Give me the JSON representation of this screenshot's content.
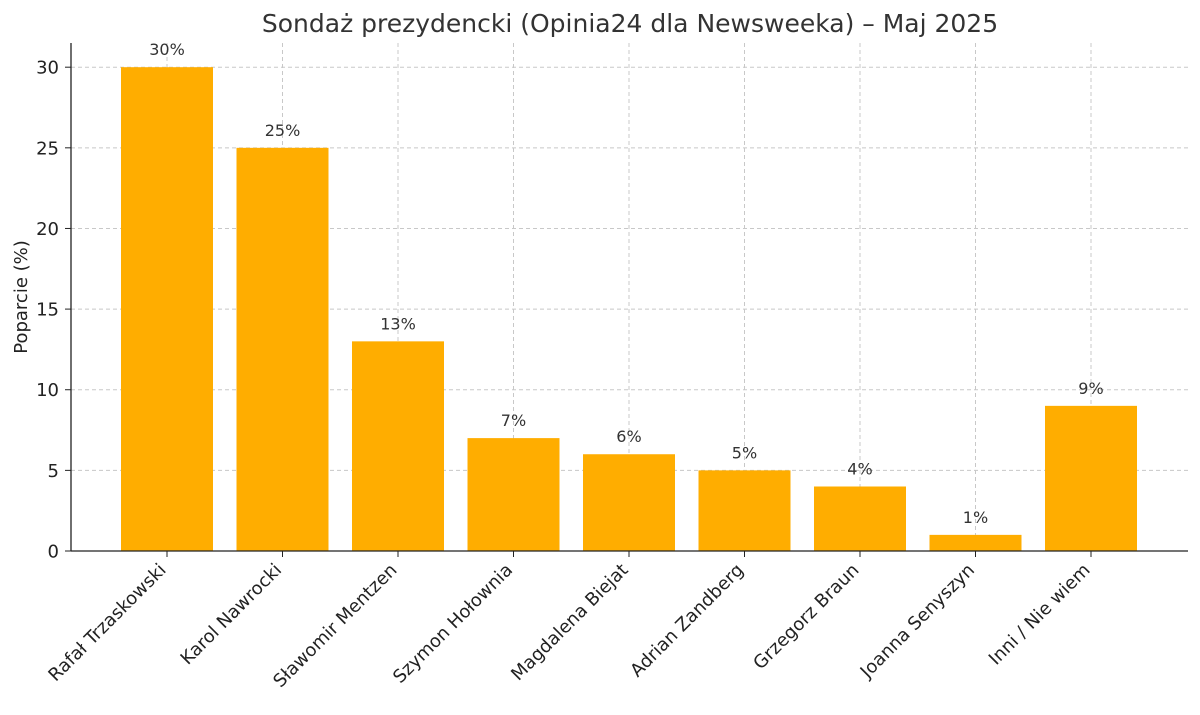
{
  "chart_data": {
    "type": "bar",
    "title": "Sondaż prezydencki (Opinia24 dla Newsweeka) – Maj 2025",
    "xlabel": "",
    "ylabel": "Poparcie (%)",
    "ylim": [
      0,
      31.5
    ],
    "yticks": [
      0,
      5,
      10,
      15,
      20,
      25,
      30
    ],
    "grid": true,
    "categories": [
      "Rafał Trzaskowski",
      "Karol Nawrocki",
      "Sławomir Mentzen",
      "Szymon Hołownia",
      "Magdalena Biejat",
      "Adrian Zandberg",
      "Grzegorz Braun",
      "Joanna Senyszyn",
      "Inni / Nie wiem"
    ],
    "values": [
      30,
      25,
      13,
      7,
      6,
      5,
      4,
      1,
      9
    ],
    "data_labels": [
      "30%",
      "25%",
      "13%",
      "7%",
      "6%",
      "5%",
      "4%",
      "1%",
      "9%"
    ],
    "bar_color": "#FFAD00"
  }
}
